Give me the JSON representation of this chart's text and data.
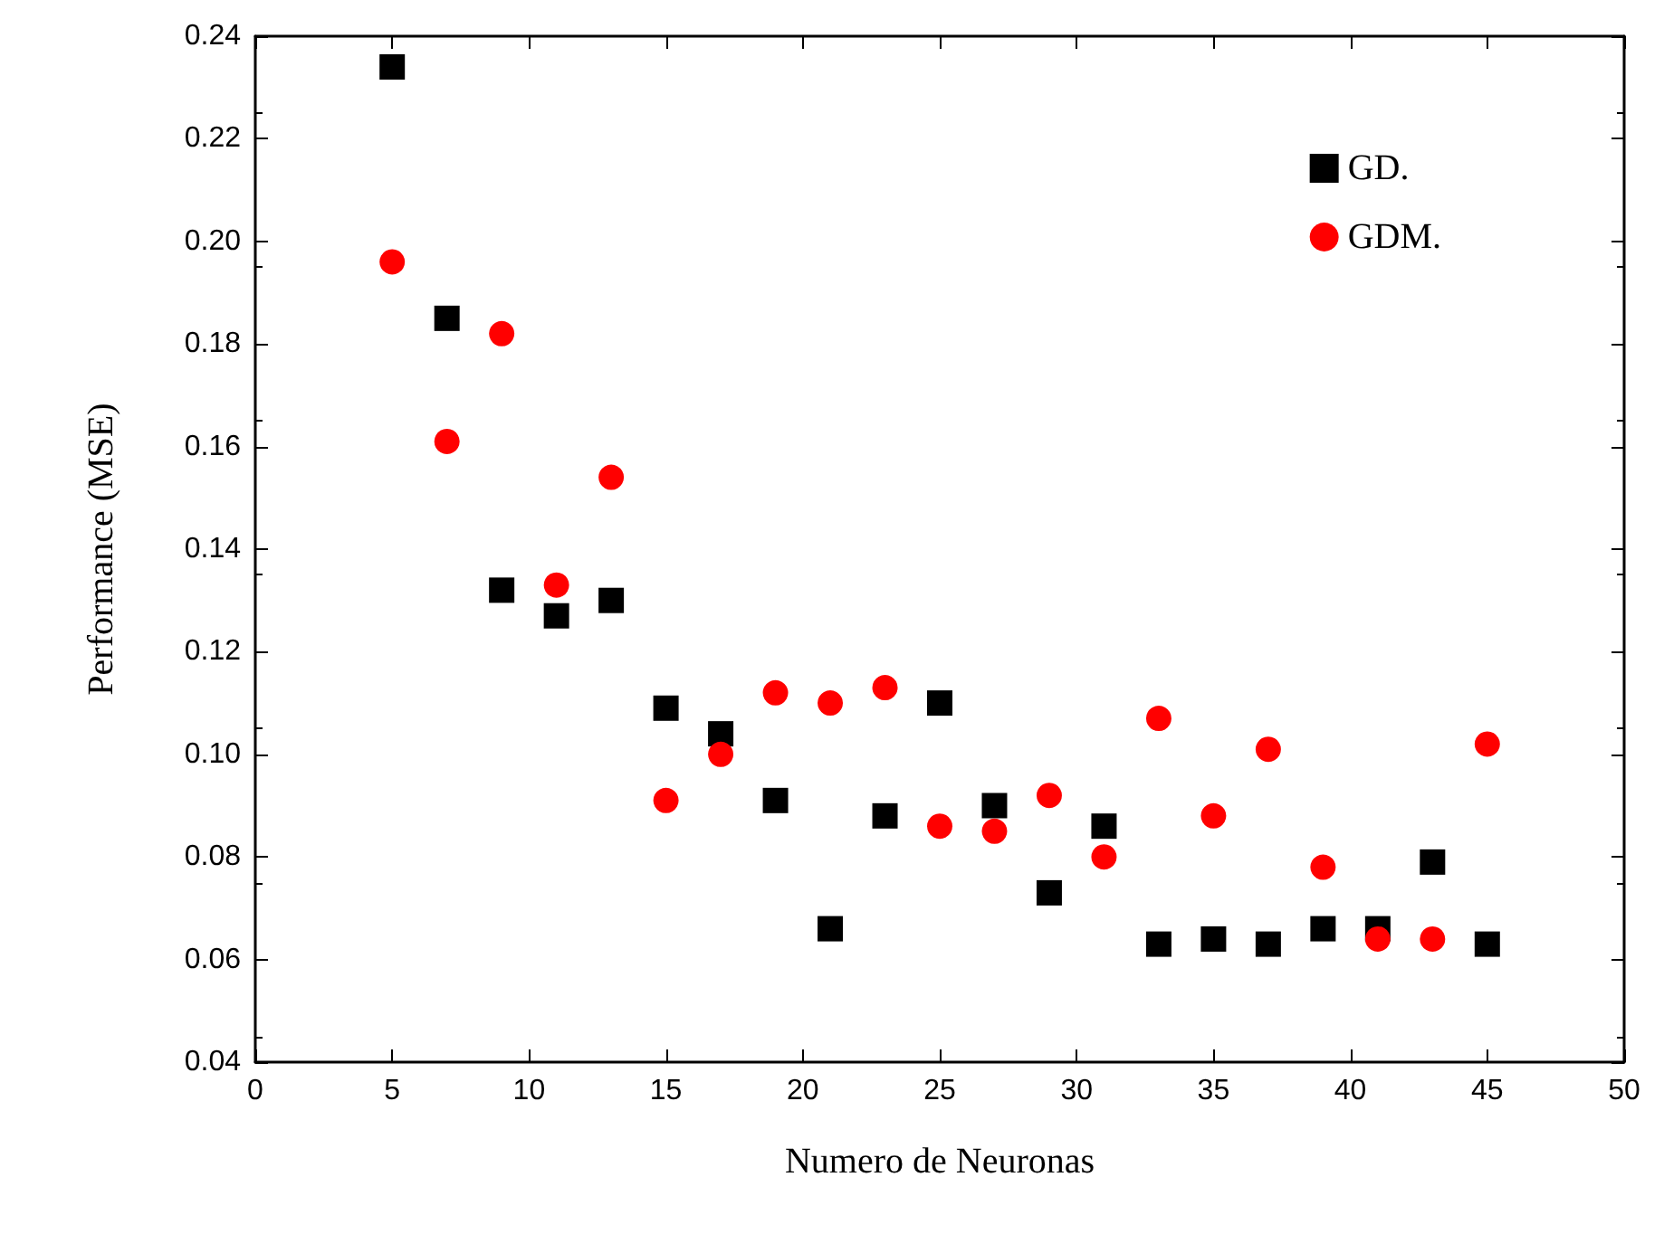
{
  "chart_data": {
    "type": "scatter",
    "xlabel": "Numero de Neuronas",
    "ylabel": "Performance (MSE)",
    "xlim": [
      0,
      50
    ],
    "xticks": [
      0,
      5,
      10,
      15,
      20,
      25,
      30,
      35,
      40,
      45,
      50
    ],
    "ylim": [
      0.04,
      0.24
    ],
    "yticks": [
      0.04,
      0.06,
      0.08,
      {
        "value": 0.1,
        "label": "0.10"
      },
      0.12,
      0.14,
      0.16,
      0.18,
      {
        "value": 0.2,
        "label": "0.20"
      },
      0.22,
      0.24
    ],
    "grid": false,
    "legend": "top right",
    "x": [
      5,
      7,
      9,
      11,
      13,
      15,
      17,
      19,
      21,
      23,
      25,
      27,
      29,
      31,
      33,
      35,
      37,
      39,
      41,
      43,
      45
    ],
    "series": [
      {
        "name": "GD.",
        "color": "#000000",
        "marker": "square",
        "values": [
          0.234,
          0.185,
          0.132,
          0.127,
          0.13,
          0.109,
          0.104,
          0.091,
          0.066,
          0.088,
          0.11,
          0.09,
          0.073,
          0.086,
          0.063,
          0.064,
          0.063,
          0.066,
          0.066,
          0.079,
          0.063
        ]
      },
      {
        "name": "GDM.",
        "color": "#ff0000",
        "marker": "circle",
        "values": [
          0.196,
          0.161,
          0.182,
          0.133,
          0.154,
          0.091,
          0.1,
          0.112,
          0.11,
          0.113,
          0.086,
          0.085,
          0.092,
          0.08,
          0.107,
          0.088,
          0.101,
          0.078,
          0.064,
          0.064,
          0.102
        ]
      }
    ]
  }
}
